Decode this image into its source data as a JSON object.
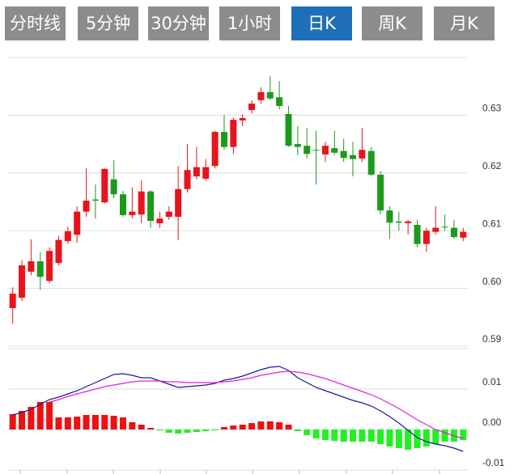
{
  "tabs": [
    "分时线",
    "5分钟",
    "30分钟",
    "1小时",
    "日K",
    "周K",
    "月K"
  ],
  "active_tab": 4,
  "chart_data": [
    {
      "type": "candlestick",
      "up_color": "#e8141c",
      "down_color": "#1c9a1c",
      "ylim": [
        0.59,
        0.64
      ],
      "yticks": [
        0.59,
        {
          "value": 0.6,
          "label": "0.60"
        },
        0.61,
        0.62,
        0.63
      ],
      "grid": true,
      "open": [
        0.5966,
        0.5984,
        0.6029,
        0.6047,
        0.6013,
        0.6044,
        0.6082,
        0.6093,
        0.6133,
        0.6154,
        0.6149,
        0.6189,
        0.6163,
        0.6127,
        0.6128,
        0.6168,
        0.6113,
        0.6124,
        0.6124,
        0.6172,
        0.6194,
        0.619,
        0.6212,
        0.6271,
        0.6245,
        0.6291,
        0.6309,
        0.6326,
        0.634,
        0.6331,
        0.6302,
        0.625,
        0.6247,
        0.624,
        0.6232,
        0.6243,
        0.6238,
        0.6231,
        0.6225,
        0.6238,
        0.6197,
        0.6135,
        0.6116,
        0.6113,
        0.611,
        0.6077,
        0.6098,
        0.6107,
        0.6105,
        0.6088
      ],
      "close": [
        0.5991,
        0.604,
        0.6047,
        0.602,
        0.6065,
        0.6084,
        0.6099,
        0.6133,
        0.6152,
        0.6152,
        0.6207,
        0.6163,
        0.6127,
        0.6133,
        0.6168,
        0.6117,
        0.6121,
        0.6133,
        0.6172,
        0.6205,
        0.621,
        0.621,
        0.6271,
        0.6245,
        0.6292,
        0.6295,
        0.632,
        0.634,
        0.6329,
        0.6316,
        0.6247,
        0.6245,
        0.6233,
        0.6239,
        0.6247,
        0.6235,
        0.6226,
        0.6224,
        0.624,
        0.6197,
        0.6135,
        0.6114,
        0.6114,
        0.6116,
        0.6077,
        0.61,
        0.6105,
        0.6106,
        0.6089,
        0.6098
      ],
      "high": [
        0.6002,
        0.6049,
        0.6085,
        0.6063,
        0.6071,
        0.6091,
        0.6107,
        0.6142,
        0.6208,
        0.618,
        0.6208,
        0.6222,
        0.6169,
        0.6175,
        0.6187,
        0.617,
        0.6133,
        0.6142,
        0.6212,
        0.625,
        0.6245,
        0.6224,
        0.6273,
        0.63,
        0.6296,
        0.6302,
        0.6326,
        0.6348,
        0.6368,
        0.6359,
        0.6316,
        0.6281,
        0.6278,
        0.6273,
        0.6254,
        0.6273,
        0.6259,
        0.6254,
        0.6278,
        0.6245,
        0.6203,
        0.6142,
        0.6133,
        0.6119,
        0.6119,
        0.6105,
        0.6142,
        0.6128,
        0.6119,
        0.6105
      ],
      "low": [
        0.5939,
        0.5978,
        0.6023,
        0.5998,
        0.6009,
        0.604,
        0.6077,
        0.6079,
        0.6124,
        0.6121,
        0.6147,
        0.6156,
        0.6124,
        0.6121,
        0.6113,
        0.6105,
        0.6105,
        0.6119,
        0.6084,
        0.6166,
        0.6189,
        0.6186,
        0.6208,
        0.624,
        0.6233,
        0.6281,
        0.6303,
        0.632,
        0.6326,
        0.631,
        0.6245,
        0.6231,
        0.6225,
        0.618,
        0.6219,
        0.6231,
        0.6219,
        0.6194,
        0.6219,
        0.6194,
        0.6128,
        0.6086,
        0.61,
        0.6093,
        0.6072,
        0.6063,
        0.6093,
        0.61,
        0.6086,
        0.6082
      ]
    },
    {
      "type": "macd",
      "positive_color": "#ee1111",
      "negative_color": "#22f022",
      "ylim": [
        -0.01,
        0.02
      ],
      "yticks": [
        -0.01,
        {
          "value": 0,
          "label": "0.00"
        },
        0.01
      ],
      "grid": true,
      "histogram": [
        0.0038,
        0.0046,
        0.0056,
        0.0068,
        0.0068,
        0.003,
        0.003,
        0.0032,
        0.0036,
        0.0036,
        0.0036,
        0.0034,
        0.003,
        0.0018,
        0.0012,
        0.0004,
        -0.0002,
        -0.0008,
        -0.001,
        -0.0008,
        -0.0006,
        -0.0004,
        -0.0002,
        0.0006,
        0.001,
        0.0012,
        0.0016,
        0.002,
        0.002,
        0.0018,
        0.0012,
        -0.0004,
        -0.0014,
        -0.0022,
        -0.0026,
        -0.0028,
        -0.003,
        -0.003,
        -0.003,
        -0.003,
        -0.0036,
        -0.0042,
        -0.0046,
        -0.005,
        -0.0046,
        -0.0042,
        -0.0036,
        -0.003,
        -0.003,
        -0.0026
      ],
      "series": [
        {
          "color": "#1a1a9c",
          "values": [
            0.0036,
            0.0042,
            0.005,
            0.0062,
            0.0074,
            0.008,
            0.0088,
            0.0096,
            0.0106,
            0.0116,
            0.0126,
            0.0136,
            0.0138,
            0.0134,
            0.0128,
            0.0128,
            0.012,
            0.0112,
            0.0104,
            0.0106,
            0.0108,
            0.011,
            0.0114,
            0.0122,
            0.0126,
            0.0132,
            0.014,
            0.0148,
            0.0154,
            0.0156,
            0.0146,
            0.0128,
            0.0116,
            0.0104,
            0.0096,
            0.0088,
            0.008,
            0.0072,
            0.0066,
            0.0058,
            0.0046,
            0.0032,
            0.0016,
            -0.0002,
            -0.002,
            -0.003,
            -0.0036,
            -0.004,
            -0.0046,
            -0.0054
          ]
        },
        {
          "color": "#e020e0",
          "values": [
            null,
            null,
            null,
            null,
            0.0068,
            0.0074,
            0.0082,
            0.0088,
            0.0094,
            0.01,
            0.0106,
            0.011,
            0.0114,
            0.0118,
            0.012,
            0.012,
            0.012,
            0.0118,
            0.0118,
            0.0116,
            0.0116,
            0.0116,
            0.0116,
            0.0118,
            0.012,
            0.0124,
            0.0128,
            0.0134,
            0.0138,
            0.0142,
            0.0144,
            0.0142,
            0.0138,
            0.0132,
            0.0126,
            0.0118,
            0.011,
            0.0102,
            0.0094,
            0.0086,
            0.0076,
            0.0064,
            0.0052,
            0.0038,
            0.0024,
            0.0012,
            0.0,
            -0.0008,
            -0.0016,
            -0.0022
          ]
        }
      ]
    }
  ]
}
